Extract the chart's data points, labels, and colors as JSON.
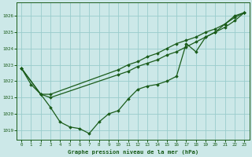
{
  "title": "Graphe pression niveau de la mer (hPa)",
  "bg_color": "#cce8e8",
  "grid_color": "#99cccc",
  "line_color": "#1a5c1a",
  "x_ticks": [
    0,
    1,
    2,
    3,
    4,
    5,
    6,
    7,
    8,
    9,
    10,
    11,
    12,
    13,
    14,
    15,
    16,
    17,
    18,
    19,
    20,
    21,
    22,
    23
  ],
  "y_ticks": [
    1019,
    1020,
    1021,
    1022,
    1023,
    1024,
    1025,
    1026
  ],
  "ylim": [
    1018.4,
    1026.8
  ],
  "xlim": [
    -0.5,
    23.5
  ],
  "line1_x": [
    0,
    1,
    2,
    3,
    4,
    5,
    6,
    7,
    8,
    9,
    10,
    11,
    12,
    13,
    14,
    15,
    16,
    17,
    18,
    19,
    20,
    21,
    22,
    23
  ],
  "line1_y": [
    1022.8,
    1021.8,
    1021.2,
    1020.4,
    1019.5,
    1019.2,
    1019.1,
    1018.8,
    1019.5,
    1020.0,
    1020.2,
    1020.9,
    1021.5,
    1021.7,
    1021.8,
    1022.0,
    1022.3,
    1024.3,
    1023.8,
    1024.7,
    1025.0,
    1025.5,
    1026.0,
    1026.2
  ],
  "line2_x": [
    0,
    2,
    3,
    10,
    11,
    12,
    13,
    14,
    15,
    16,
    17,
    18,
    19,
    20,
    21,
    22,
    23
  ],
  "line2_y": [
    1022.8,
    1021.2,
    1021.2,
    1022.7,
    1023.0,
    1023.2,
    1023.5,
    1023.7,
    1024.0,
    1024.3,
    1024.5,
    1024.7,
    1025.0,
    1025.2,
    1025.5,
    1025.9,
    1026.2
  ],
  "line3_x": [
    0,
    2,
    3,
    10,
    11,
    12,
    13,
    14,
    15,
    16,
    17,
    18,
    19,
    20,
    21,
    22,
    23
  ],
  "line3_y": [
    1022.8,
    1021.2,
    1021.0,
    1022.4,
    1022.6,
    1022.9,
    1023.1,
    1023.3,
    1023.6,
    1023.8,
    1024.1,
    1024.4,
    1024.7,
    1025.0,
    1025.3,
    1025.7,
    1026.2
  ]
}
